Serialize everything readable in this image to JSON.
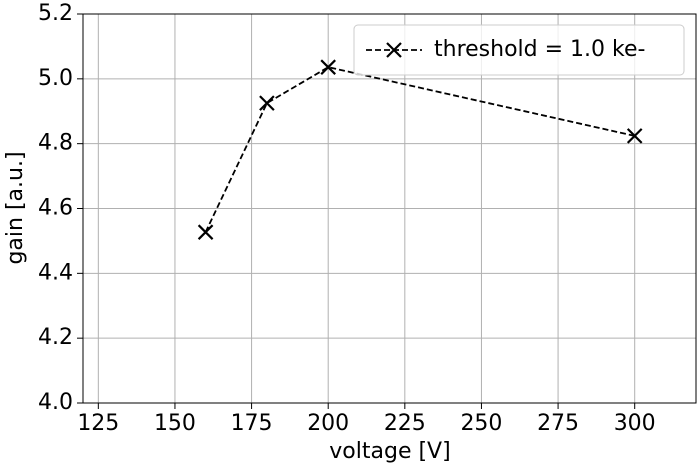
{
  "chart_data": {
    "type": "line",
    "x": [
      160,
      180,
      200,
      300
    ],
    "series": [
      {
        "name": "threshold = 1.0 ke-",
        "color": "#000000",
        "values": [
          4.527,
          4.925,
          5.036,
          4.824
        ]
      }
    ],
    "xlabel": "voltage [V]",
    "ylabel": "gain [a.u.]",
    "xlim": [
      120,
      320
    ],
    "xticks": [
      125,
      150,
      175,
      200,
      225,
      250,
      275,
      300
    ],
    "ylim": [
      4.0,
      5.2
    ],
    "yticks": [
      {
        "value": 4.0,
        "label": "4.0"
      },
      {
        "value": 4.2,
        "label": "4.2"
      },
      {
        "value": 4.4,
        "label": "4.4"
      },
      {
        "value": 4.6,
        "label": "4.6"
      },
      {
        "value": 4.8,
        "label": "4.8"
      },
      {
        "value": 5.0,
        "label": "5.0"
      },
      {
        "value": 5.2,
        "label": "5.2"
      }
    ],
    "grid": true,
    "legend": "upper right"
  }
}
